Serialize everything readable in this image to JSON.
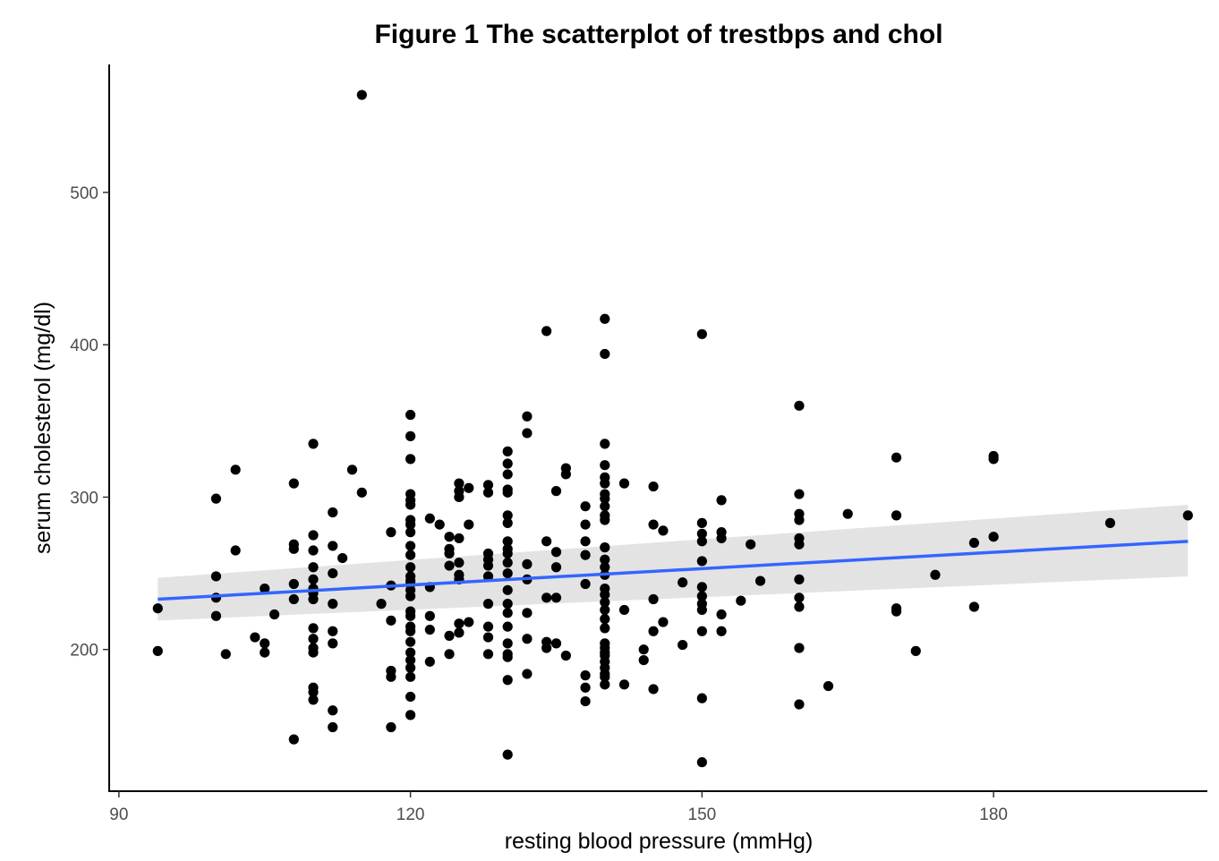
{
  "chart_data": {
    "type": "scatter",
    "title": "Figure 1 The scatterplot of trestbps and chol",
    "xlabel": "resting blood pressure (mmHg)",
    "ylabel": "serum cholesterol (mg/dl)",
    "xlim": [
      89,
      202
    ],
    "ylim": [
      107,
      584
    ],
    "x_ticks": [
      {
        "value": 90,
        "label": "90"
      },
      {
        "value": 120,
        "label": "120"
      },
      {
        "value": 150,
        "label": "150"
      },
      {
        "value": 180,
        "label": "180"
      }
    ],
    "y_ticks": [
      {
        "value": 200,
        "label": "200"
      },
      {
        "value": 300,
        "label": "300"
      },
      {
        "value": 400,
        "label": "400"
      },
      {
        "value": 500,
        "label": "500"
      }
    ],
    "grid": false,
    "legend": "none",
    "point_color": "#000000",
    "trend_color": "#3366FF",
    "band_color": "#D9D9D9",
    "trend_line": {
      "x": [
        94,
        200
      ],
      "y": [
        233,
        271
      ]
    },
    "confidence_band": {
      "x": [
        94,
        200
      ],
      "lower": [
        219,
        248
      ],
      "upper": [
        247,
        295
      ]
    },
    "points": [
      [
        115,
        564
      ],
      [
        140,
        417
      ],
      [
        134,
        409
      ],
      [
        150,
        407
      ],
      [
        140,
        394
      ],
      [
        120,
        354
      ],
      [
        132,
        353
      ],
      [
        160,
        360
      ],
      [
        132,
        342
      ],
      [
        120,
        340
      ],
      [
        110,
        335
      ],
      [
        140,
        335
      ],
      [
        130,
        330
      ],
      [
        170,
        326
      ],
      [
        180,
        327
      ],
      [
        180,
        325
      ],
      [
        120,
        325
      ],
      [
        130,
        322
      ],
      [
        140,
        321
      ],
      [
        114,
        318
      ],
      [
        102,
        318
      ],
      [
        136,
        319
      ],
      [
        136,
        315
      ],
      [
        130,
        315
      ],
      [
        140,
        313
      ],
      [
        140,
        309
      ],
      [
        108,
        309
      ],
      [
        125,
        309
      ],
      [
        142,
        309
      ],
      [
        128,
        308
      ],
      [
        145,
        307
      ],
      [
        126,
        306
      ],
      [
        130,
        305
      ],
      [
        125,
        304
      ],
      [
        130,
        303
      ],
      [
        115,
        303
      ],
      [
        135,
        304
      ],
      [
        140,
        302
      ],
      [
        120,
        302
      ],
      [
        160,
        302
      ],
      [
        128,
        303
      ],
      [
        100,
        299
      ],
      [
        140,
        299
      ],
      [
        152,
        298
      ],
      [
        120,
        298
      ],
      [
        125,
        300
      ],
      [
        120,
        295
      ],
      [
        138,
        294
      ],
      [
        140,
        294
      ],
      [
        130,
        288
      ],
      [
        140,
        288
      ],
      [
        165,
        289
      ],
      [
        170,
        288
      ],
      [
        200,
        288
      ],
      [
        112,
        290
      ],
      [
        160,
        289
      ],
      [
        122,
        286
      ],
      [
        120,
        285
      ],
      [
        160,
        285
      ],
      [
        140,
        285
      ],
      [
        123,
        282
      ],
      [
        130,
        283
      ],
      [
        150,
        283
      ],
      [
        120,
        282
      ],
      [
        138,
        282
      ],
      [
        126,
        282
      ],
      [
        145,
        282
      ],
      [
        192,
        283
      ],
      [
        146,
        278
      ],
      [
        120,
        277
      ],
      [
        110,
        275
      ],
      [
        118,
        277
      ],
      [
        152,
        277
      ],
      [
        150,
        276
      ],
      [
        124,
        274
      ],
      [
        180,
        274
      ],
      [
        125,
        273
      ],
      [
        160,
        273
      ],
      [
        152,
        273
      ],
      [
        130,
        271
      ],
      [
        150,
        271
      ],
      [
        134,
        271
      ],
      [
        138,
        271
      ],
      [
        160,
        269
      ],
      [
        155,
        269
      ],
      [
        178,
        270
      ],
      [
        108,
        269
      ],
      [
        120,
        268
      ],
      [
        112,
        268
      ],
      [
        108,
        266
      ],
      [
        124,
        266
      ],
      [
        130,
        266
      ],
      [
        140,
        267
      ],
      [
        102,
        265
      ],
      [
        110,
        265
      ],
      [
        135,
        264
      ],
      [
        124,
        263
      ],
      [
        130,
        263
      ],
      [
        128,
        263
      ],
      [
        120,
        262
      ],
      [
        138,
        262
      ],
      [
        113,
        260
      ],
      [
        128,
        259
      ],
      [
        140,
        259
      ],
      [
        125,
        257
      ],
      [
        130,
        257
      ],
      [
        132,
        256
      ],
      [
        150,
        258
      ],
      [
        128,
        255
      ],
      [
        124,
        255
      ],
      [
        120,
        254
      ],
      [
        110,
        254
      ],
      [
        135,
        254
      ],
      [
        140,
        254
      ],
      [
        140,
        249
      ],
      [
        174,
        249
      ],
      [
        125,
        249
      ],
      [
        130,
        250
      ],
      [
        112,
        250
      ],
      [
        120,
        248
      ],
      [
        100,
        248
      ],
      [
        128,
        248
      ],
      [
        110,
        246
      ],
      [
        160,
        246
      ],
      [
        132,
        246
      ],
      [
        125,
        246
      ],
      [
        156,
        245
      ],
      [
        120,
        245
      ],
      [
        148,
        244
      ],
      [
        108,
        243
      ],
      [
        120,
        243
      ],
      [
        110,
        240
      ],
      [
        105,
        240
      ],
      [
        118,
        242
      ],
      [
        122,
        241
      ],
      [
        150,
        241
      ],
      [
        138,
        243
      ],
      [
        140,
        240
      ],
      [
        120,
        239
      ],
      [
        130,
        239
      ],
      [
        110,
        237
      ],
      [
        140,
        236
      ],
      [
        120,
        235
      ],
      [
        150,
        235
      ],
      [
        134,
        234
      ],
      [
        160,
        234
      ],
      [
        100,
        234
      ],
      [
        135,
        234
      ],
      [
        145,
        233
      ],
      [
        110,
        233
      ],
      [
        108,
        233
      ],
      [
        154,
        232
      ],
      [
        128,
        230
      ],
      [
        117,
        230
      ],
      [
        140,
        231
      ],
      [
        130,
        230
      ],
      [
        112,
        230
      ],
      [
        150,
        230
      ],
      [
        160,
        228
      ],
      [
        178,
        228
      ],
      [
        170,
        227
      ],
      [
        94,
        227
      ],
      [
        140,
        226
      ],
      [
        170,
        225
      ],
      [
        142,
        226
      ],
      [
        120,
        225
      ],
      [
        150,
        226
      ],
      [
        130,
        224
      ],
      [
        132,
        224
      ],
      [
        120,
        222
      ],
      [
        100,
        222
      ],
      [
        152,
        223
      ],
      [
        106,
        223
      ],
      [
        122,
        222
      ],
      [
        140,
        220
      ],
      [
        126,
        218
      ],
      [
        146,
        218
      ],
      [
        118,
        219
      ],
      [
        125,
        217
      ],
      [
        120,
        215
      ],
      [
        110,
        214
      ],
      [
        128,
        215
      ],
      [
        130,
        215
      ],
      [
        140,
        214
      ],
      [
        122,
        213
      ],
      [
        150,
        212
      ],
      [
        112,
        212
      ],
      [
        152,
        212
      ],
      [
        145,
        212
      ],
      [
        120,
        212
      ],
      [
        125,
        211
      ],
      [
        104,
        208
      ],
      [
        124,
        209
      ],
      [
        110,
        207
      ],
      [
        128,
        208
      ],
      [
        132,
        207
      ],
      [
        120,
        205
      ],
      [
        130,
        204
      ],
      [
        140,
        204
      ],
      [
        105,
        204
      ],
      [
        112,
        204
      ],
      [
        134,
        205
      ],
      [
        135,
        204
      ],
      [
        148,
        203
      ],
      [
        110,
        201
      ],
      [
        160,
        201
      ],
      [
        140,
        201
      ],
      [
        134,
        201
      ],
      [
        144,
        200
      ],
      [
        172,
        199
      ],
      [
        94,
        199
      ],
      [
        110,
        198
      ],
      [
        120,
        198
      ],
      [
        140,
        198
      ],
      [
        105,
        198
      ],
      [
        128,
        197
      ],
      [
        130,
        197
      ],
      [
        101,
        197
      ],
      [
        124,
        197
      ],
      [
        136,
        196
      ],
      [
        140,
        196
      ],
      [
        130,
        195
      ],
      [
        120,
        193
      ],
      [
        144,
        193
      ],
      [
        122,
        192
      ],
      [
        140,
        192
      ],
      [
        120,
        188
      ],
      [
        140,
        188
      ],
      [
        118,
        186
      ],
      [
        140,
        184
      ],
      [
        132,
        184
      ],
      [
        138,
        183
      ],
      [
        118,
        182
      ],
      [
        120,
        182
      ],
      [
        140,
        182
      ],
      [
        130,
        180
      ],
      [
        140,
        177
      ],
      [
        142,
        177
      ],
      [
        138,
        175
      ],
      [
        163,
        176
      ],
      [
        110,
        175
      ],
      [
        145,
        174
      ],
      [
        110,
        172
      ],
      [
        120,
        169
      ],
      [
        150,
        168
      ],
      [
        110,
        167
      ],
      [
        138,
        166
      ],
      [
        160,
        164
      ],
      [
        112,
        160
      ],
      [
        120,
        157
      ],
      [
        112,
        149
      ],
      [
        118,
        149
      ],
      [
        108,
        141
      ],
      [
        130,
        131
      ],
      [
        150,
        126
      ]
    ]
  }
}
